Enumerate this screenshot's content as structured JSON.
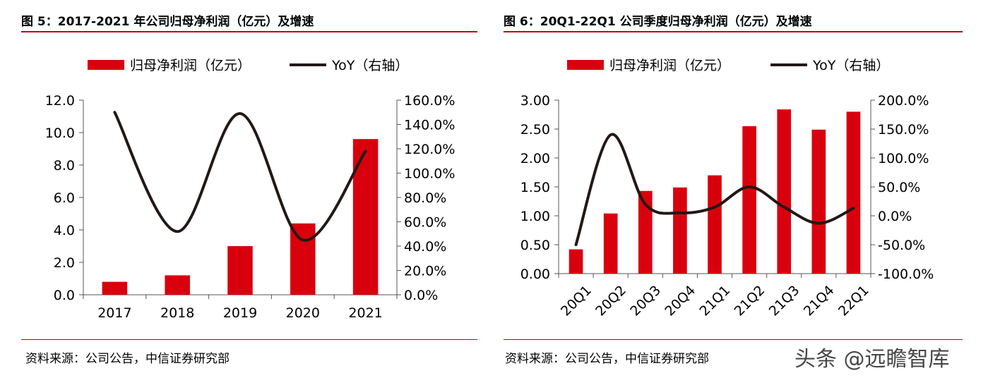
{
  "watermark": "头条 @远瞻智库",
  "charts": {
    "left": {
      "title": "图 5：2017-2021 年公司归母净利润（亿元）及增速",
      "source": "资料来源：公司公告，中信证券研究部",
      "legend": {
        "bar": "归母净利润（亿元）",
        "line": "YoY（右轴）"
      },
      "colors": {
        "bar": "#d9000d",
        "line": "#231815",
        "rule": "#c0000b"
      }
    },
    "right": {
      "title": "图 6：20Q1-22Q1 公司季度归母净利润（亿元）及增速",
      "source": "资料来源：公司公告，中信证券研究部",
      "legend": {
        "bar": "归母净利润（亿元）",
        "line": "YoY（右轴）"
      },
      "colors": {
        "bar": "#d9000d",
        "line": "#231815",
        "rule": "#c0000b"
      }
    }
  },
  "chart_data": [
    {
      "type": "bar",
      "categories": [
        "2017",
        "2018",
        "2019",
        "2020",
        "2021"
      ],
      "series": [
        {
          "name": "归母净利润（亿元）",
          "type": "bar",
          "axis": "left",
          "values": [
            0.8,
            1.2,
            3.0,
            4.4,
            9.6
          ]
        },
        {
          "name": "YoY（右轴）",
          "type": "line",
          "axis": "right",
          "values": [
            150,
            52,
            149,
            45,
            118
          ]
        }
      ],
      "y_left": {
        "min": 0,
        "max": 12,
        "step": 2,
        "ticks": [
          "0.0",
          "2.0",
          "4.0",
          "6.0",
          "8.0",
          "10.0",
          "12.0"
        ]
      },
      "y_right": {
        "min": 0,
        "max": 160,
        "step": 20,
        "ticks": [
          "0.0%",
          "20.0%",
          "40.0%",
          "60.0%",
          "80.0%",
          "100.0%",
          "120.0%",
          "140.0%",
          "160.0%"
        ]
      },
      "legend_position": "top",
      "grid": false
    },
    {
      "type": "bar",
      "categories": [
        "20Q1",
        "20Q2",
        "20Q3",
        "20Q4",
        "21Q1",
        "21Q2",
        "21Q3",
        "21Q4",
        "22Q1"
      ],
      "series": [
        {
          "name": "归母净利润（亿元）",
          "type": "bar",
          "axis": "left",
          "values": [
            0.42,
            1.04,
            1.43,
            1.49,
            1.7,
            2.55,
            2.84,
            2.49,
            2.8
          ]
        },
        {
          "name": "YoY（右轴）",
          "type": "line",
          "axis": "right",
          "values": [
            -50,
            140,
            20,
            5,
            15,
            50,
            15,
            -13,
            13
          ]
        }
      ],
      "y_left": {
        "min": 0,
        "max": 3,
        "step": 0.5,
        "ticks": [
          "0.00",
          "0.50",
          "1.00",
          "1.50",
          "2.00",
          "2.50",
          "3.00"
        ]
      },
      "y_right": {
        "min": -100,
        "max": 200,
        "step": 50,
        "ticks": [
          "-100.0%",
          "-50.0%",
          "0.0%",
          "50.0%",
          "100.0%",
          "150.0%",
          "200.0%"
        ]
      },
      "legend_position": "top",
      "grid": false,
      "rotated_x_labels": true
    }
  ]
}
